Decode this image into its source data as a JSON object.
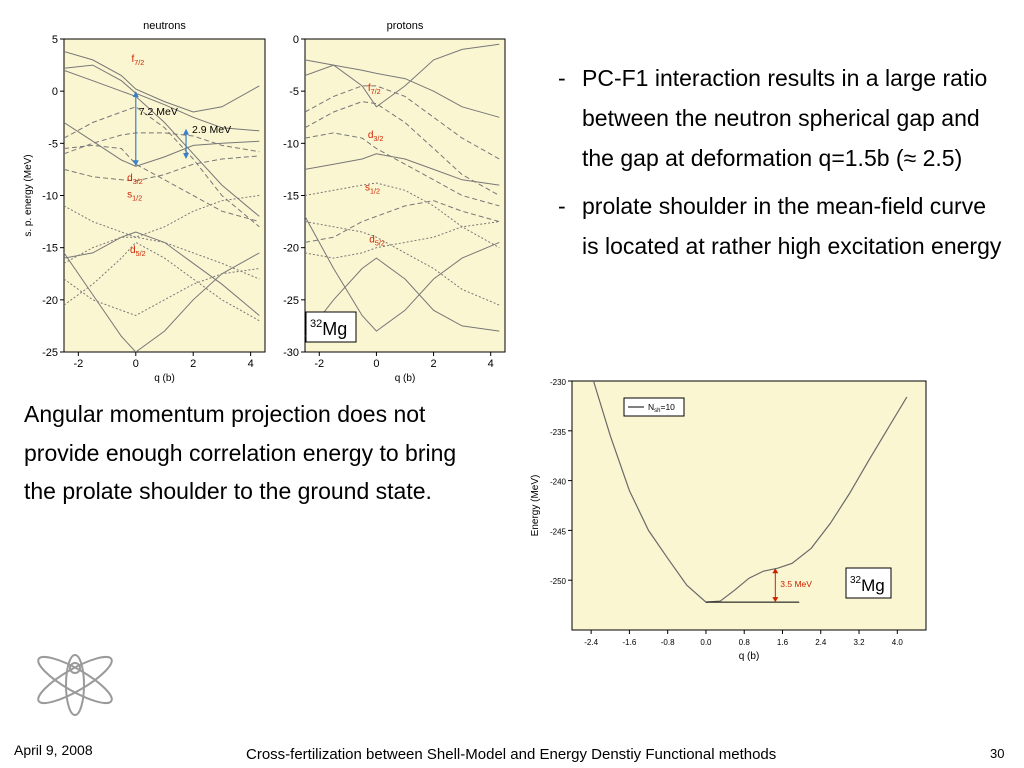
{
  "slide": {
    "bullets": [
      {
        "dash": "-",
        "text": "PC-F1 interaction results in a large ratio between the neutron spherical gap and the gap at deformation q=1.5b (≈ 2.5)"
      },
      {
        "dash": "-",
        "text": "prolate shoulder in the mean-field curve is located at rather high excitation energy"
      }
    ],
    "paragraph": "Angular momentum projection does not provide enough correlation energy to bring the prolate shoulder to the ground state.",
    "footer": {
      "date": "April 9, 2008",
      "title": "Cross-fertilization between Shell-Model and Energy Denstiy Functional methods",
      "page": "30"
    }
  },
  "colors": {
    "plot_bg": "#fbf6d2",
    "curve": "#777777",
    "annotation_red": "#cc2200",
    "arrow_blue": "#3a7fc9"
  },
  "chart_data": [
    {
      "type": "line",
      "title": "neutrons",
      "xlabel": "q (b)",
      "ylabel": "s. p. energy (MeV)",
      "xlim": [
        -2.5,
        4.5
      ],
      "ylim": [
        -25,
        5
      ],
      "xticks": [
        "-2",
        "0",
        "2",
        "4"
      ],
      "yticks": [
        "5",
        "0",
        "-5",
        "-10",
        "-15",
        "-20",
        "-25"
      ],
      "annotations": [
        {
          "label": "f",
          "sub": "7/2"
        },
        {
          "label": "d",
          "sub": "3/2"
        },
        {
          "label": "s",
          "sub": "1/2"
        },
        {
          "label": "d",
          "sub": "5/2"
        }
      ],
      "gaps": [
        {
          "label": "7.2 MeV",
          "q": 0,
          "from": 0,
          "to": -7.2
        },
        {
          "label": "2.9 MeV",
          "q": 1.75,
          "from": -3.6,
          "to": -6.5
        }
      ],
      "series": [
        {
          "style": "solid",
          "x": [
            -2.5,
            -1.5,
            -0.5,
            0,
            1,
            2,
            3,
            4.3
          ],
          "y": [
            2.2,
            2.5,
            1.0,
            -0.2,
            -1.3,
            -2.5,
            -3.5,
            -3.8
          ]
        },
        {
          "style": "solid",
          "x": [
            -2.5,
            -1.5,
            -0.5,
            0,
            1,
            2,
            3,
            4.3
          ],
          "y": [
            -3.0,
            -4.8,
            -6.6,
            -7.2,
            -6.3,
            -5.2,
            -5.0,
            -4.8
          ]
        },
        {
          "style": "solid",
          "x": [
            -2.5,
            -1.5,
            -0.5,
            0,
            1,
            2,
            3,
            4.3
          ],
          "y": [
            3.8,
            3.0,
            1.5,
            0.2,
            -1.0,
            -2.0,
            -1.5,
            0.5
          ]
        },
        {
          "style": "solid",
          "x": [
            -2.5,
            -1.5,
            -0.5,
            0,
            1,
            2,
            3,
            4.3
          ],
          "y": [
            2.0,
            1.0,
            0.0,
            -0.5,
            -3.0,
            -6.0,
            -9.0,
            -12.0
          ]
        },
        {
          "style": "solid",
          "x": [
            -2.5,
            -1.5,
            -0.5,
            0,
            1,
            2,
            3,
            4.3
          ],
          "y": [
            -15.5,
            -19.5,
            -23.5,
            -25.0,
            -23.0,
            -20.0,
            -17.5,
            -15.5
          ]
        },
        {
          "style": "solid",
          "x": [
            -2.5,
            -1.5,
            -0.5,
            0,
            1,
            2,
            3,
            4.3
          ],
          "y": [
            -16.0,
            -15.5,
            -14.0,
            -13.5,
            -14.5,
            -16.5,
            -18.5,
            -21.5
          ]
        },
        {
          "style": "dashed",
          "x": [
            -2.5,
            -1.5,
            -0.5,
            0,
            1,
            2,
            3,
            4.3
          ],
          "y": [
            -6.0,
            -5.0,
            -4.2,
            -4.0,
            -4.0,
            -4.3,
            -5.2,
            -5.8
          ]
        },
        {
          "style": "dashed",
          "x": [
            -2.5,
            -1.5,
            -0.5,
            0,
            1,
            2,
            3,
            4.3
          ],
          "y": [
            -7.5,
            -8.2,
            -8.5,
            -8.6,
            -8.0,
            -7.0,
            -6.5,
            -6.2
          ]
        },
        {
          "style": "dashed",
          "x": [
            -2.5,
            -1.5,
            -0.5,
            0,
            1,
            2,
            3,
            4.3
          ],
          "y": [
            -4.5,
            -3.0,
            -2.0,
            -1.5,
            -3.5,
            -6.5,
            -10.0,
            -13.0
          ]
        },
        {
          "style": "dashed",
          "x": [
            -2.5,
            -1.5,
            -0.5,
            0,
            1,
            2,
            3,
            4.3
          ],
          "y": [
            -5.5,
            -5.2,
            -5.5,
            -7.0,
            -8.5,
            -10.0,
            -11.5,
            -12.5
          ]
        },
        {
          "style": "dotted",
          "x": [
            -2.5,
            -1.5,
            -0.5,
            0,
            1,
            2,
            3,
            4.3
          ],
          "y": [
            -16.5,
            -15.0,
            -14.0,
            -14.0,
            -14.5,
            -15.5,
            -16.5,
            -18.0
          ]
        },
        {
          "style": "dotted",
          "x": [
            -2.5,
            -1.5,
            -0.5,
            0,
            1,
            2,
            3,
            4.3
          ],
          "y": [
            -20.5,
            -18.5,
            -16.0,
            -14.5,
            -16.0,
            -18.0,
            -20.0,
            -22.0
          ]
        },
        {
          "style": "dotted",
          "x": [
            -2.5,
            -1.5,
            -0.5,
            0,
            1,
            2,
            3,
            4.3
          ],
          "y": [
            -11.0,
            -12.5,
            -13.5,
            -14.0,
            -13.0,
            -11.5,
            -10.5,
            -10.0
          ]
        },
        {
          "style": "dotted",
          "x": [
            -2.5,
            -1.5,
            -0.5,
            0,
            1,
            2,
            3,
            4.3
          ],
          "y": [
            -18.0,
            -20.0,
            -21.0,
            -21.5,
            -20.0,
            -18.5,
            -17.5,
            -17.0
          ]
        }
      ]
    },
    {
      "type": "line",
      "title": "protons",
      "xlabel": "q (b)",
      "xlim": [
        -2.5,
        4.5
      ],
      "ylim": [
        -30,
        0
      ],
      "xticks": [
        "-2",
        "0",
        "2",
        "4"
      ],
      "yticks": [
        "0",
        "-5",
        "-10",
        "-15",
        "-20",
        "-25",
        "-30"
      ],
      "annotations": [
        {
          "label": "f",
          "sub": "7/2"
        },
        {
          "label": "d",
          "sub": "3/2"
        },
        {
          "label": "s",
          "sub": "1/2"
        },
        {
          "label": "d",
          "sub": "5/2"
        }
      ],
      "nucleus": {
        "mass": "32",
        "symbol": "Mg"
      },
      "series": [
        {
          "style": "solid",
          "x": [
            -2.5,
            -1.5,
            -0.5,
            0,
            1,
            2,
            3,
            4.3
          ],
          "y": [
            -3.5,
            -2.5,
            -3.0,
            -3.3,
            -3.8,
            -5.0,
            -6.5,
            -7.5
          ]
        },
        {
          "style": "solid",
          "x": [
            -2.5,
            -1.5,
            -0.5,
            0,
            1,
            2,
            3,
            4.3
          ],
          "y": [
            -2.0,
            -2.5,
            -4.5,
            -6.5,
            -4.5,
            -2.0,
            -1.0,
            -0.5
          ]
        },
        {
          "style": "solid",
          "x": [
            -2.5,
            -1.5,
            -0.5,
            0,
            1,
            2,
            3,
            4.3
          ],
          "y": [
            -17.0,
            -22.0,
            -26.5,
            -28.0,
            -26.0,
            -23.0,
            -21.0,
            -19.5
          ]
        },
        {
          "style": "solid",
          "x": [
            -2.5,
            -1.5,
            -0.5,
            0,
            1,
            2,
            3,
            4.3
          ],
          "y": [
            -12.5,
            -12.0,
            -11.5,
            -11.0,
            -11.5,
            -12.5,
            -13.5,
            -14.0
          ]
        },
        {
          "style": "solid",
          "x": [
            -2.5,
            -1.5,
            -0.5,
            0,
            1,
            2,
            3,
            4.3
          ],
          "y": [
            -28.5,
            -25.0,
            -22.0,
            -21.0,
            -23.0,
            -26.0,
            -27.5,
            -28.0
          ]
        },
        {
          "style": "dashed",
          "x": [
            -2.5,
            -1.5,
            -0.5,
            0,
            1,
            2,
            3,
            4.3
          ],
          "y": [
            -19.5,
            -19.0,
            -17.5,
            -17.0,
            -16.0,
            -15.5,
            -16.5,
            -17.5
          ]
        },
        {
          "style": "dashed",
          "x": [
            -2.5,
            -1.5,
            -0.5,
            0,
            1,
            2,
            3,
            4.3
          ],
          "y": [
            -7.0,
            -5.5,
            -4.5,
            -4.5,
            -5.5,
            -7.5,
            -9.5,
            -11.5
          ]
        },
        {
          "style": "dashed",
          "x": [
            -2.5,
            -1.5,
            -0.5,
            0,
            1,
            2,
            3,
            4.3
          ],
          "y": [
            -8.5,
            -7.0,
            -6.0,
            -6.2,
            -8.0,
            -10.5,
            -13.0,
            -15.0
          ]
        },
        {
          "style": "dashed",
          "x": [
            -2.5,
            -1.5,
            -0.5,
            0,
            1,
            2,
            3,
            4.3
          ],
          "y": [
            -9.5,
            -9.0,
            -9.5,
            -10.5,
            -12.0,
            -13.5,
            -15.0,
            -16.0
          ]
        },
        {
          "style": "dotted",
          "x": [
            -2.5,
            -1.5,
            -0.5,
            0,
            1,
            2,
            3,
            4.3
          ],
          "y": [
            -15.0,
            -14.5,
            -14.0,
            -13.8,
            -14.5,
            -16.0,
            -18.0,
            -20.0
          ]
        },
        {
          "style": "dotted",
          "x": [
            -2.5,
            -1.5,
            -0.5,
            0,
            1,
            2,
            3,
            4.3
          ],
          "y": [
            -20.5,
            -21.0,
            -20.5,
            -20.0,
            -19.5,
            -19.0,
            -18.0,
            -17.5
          ]
        },
        {
          "style": "dotted",
          "x": [
            -2.5,
            -1.5,
            -0.5,
            0,
            1,
            2,
            3,
            4.3
          ],
          "y": [
            -17.5,
            -18.0,
            -18.5,
            -19.0,
            -20.5,
            -22.0,
            -24.0,
            -25.5
          ]
        }
      ]
    },
    {
      "type": "line",
      "xlabel": "q (b)",
      "ylabel": "Energy (MeV)",
      "xlim": [
        -2.8,
        4.6
      ],
      "ylim": [
        -255,
        -230
      ],
      "xticks": [
        "-2.4",
        "-1.6",
        "-0.8",
        "0.0",
        "0.8",
        "1.6",
        "2.4",
        "3.2",
        "4.0"
      ],
      "yticks": [
        "-230",
        "-235",
        "-240",
        "-245",
        "-250"
      ],
      "legend": {
        "label": "N",
        "sub": "sh",
        "suffix": "=10",
        "position": "top-left"
      },
      "shoulder_gap": {
        "label": "3.5 MeV",
        "q": 1.45,
        "from": -248.8,
        "to": -252.2
      },
      "nucleus": {
        "mass": "32",
        "symbol": "Mg"
      },
      "series": [
        {
          "style": "solid",
          "x": [
            -2.35,
            -2.0,
            -1.6,
            -1.2,
            -0.8,
            -0.4,
            0.0,
            0.3,
            0.6,
            0.9,
            1.2,
            1.5,
            1.8,
            2.2,
            2.6,
            3.0,
            3.4,
            3.8,
            4.2
          ],
          "y": [
            -230.0,
            -235.5,
            -241.0,
            -245.0,
            -247.8,
            -250.5,
            -252.2,
            -252.1,
            -251.0,
            -249.8,
            -249.1,
            -248.8,
            -248.3,
            -246.8,
            -244.3,
            -241.3,
            -238.0,
            -234.8,
            -231.6
          ]
        }
      ]
    }
  ]
}
